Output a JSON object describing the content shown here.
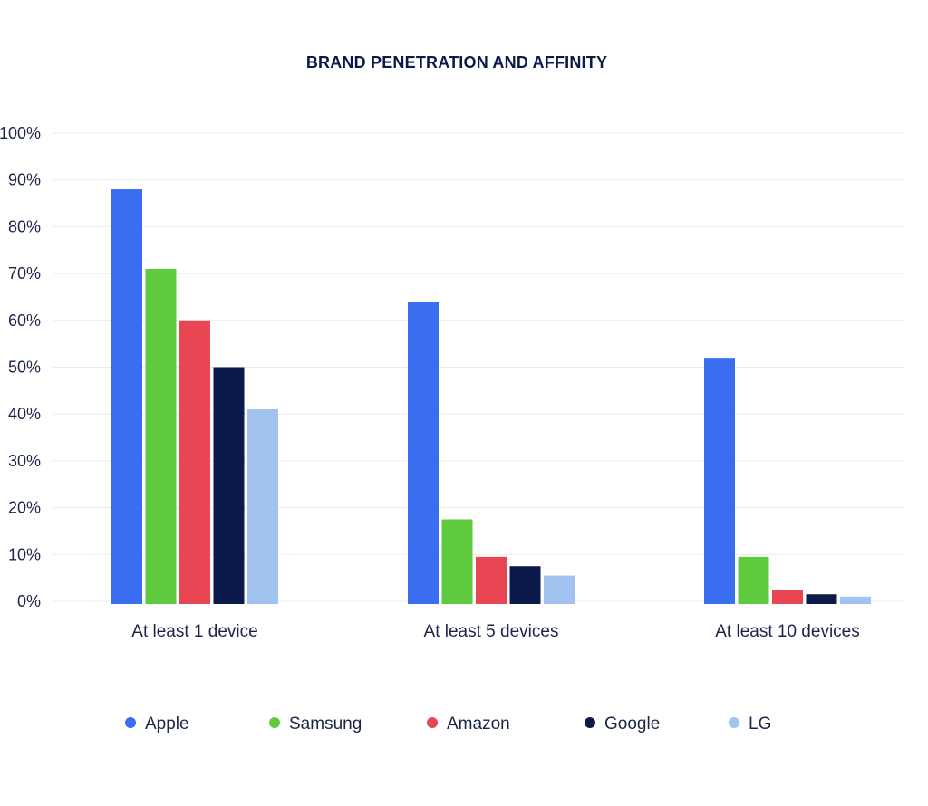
{
  "chart_data": {
    "type": "bar",
    "title": "BRAND PENETRATION AND AFFINITY",
    "xlabel": "",
    "ylabel": "",
    "ylim": [
      0,
      100
    ],
    "yticks": [
      0,
      10,
      20,
      30,
      40,
      50,
      60,
      70,
      80,
      90,
      100
    ],
    "ytick_labels": [
      "0%",
      "10%",
      "20%",
      "30%",
      "40%",
      "50%",
      "60%",
      "70%",
      "80%",
      "90%",
      "100%"
    ],
    "grid": true,
    "legend_position": "bottom",
    "categories": [
      "At least 1 device",
      "At least 5 devices",
      "At least 10 devices"
    ],
    "series": [
      {
        "name": "Apple",
        "color": "#3a6ef0",
        "values": [
          88,
          64,
          52
        ]
      },
      {
        "name": "Samsung",
        "color": "#5ecb3f",
        "values": [
          71,
          17.5,
          9.5
        ]
      },
      {
        "name": "Amazon",
        "color": "#e84652",
        "values": [
          60,
          9.5,
          2.5
        ]
      },
      {
        "name": "Google",
        "color": "#0b1a4a",
        "values": [
          50,
          7.5,
          1.5
        ]
      },
      {
        "name": "LG",
        "color": "#a2c3f0",
        "values": [
          41,
          5.5,
          1
        ]
      }
    ]
  }
}
